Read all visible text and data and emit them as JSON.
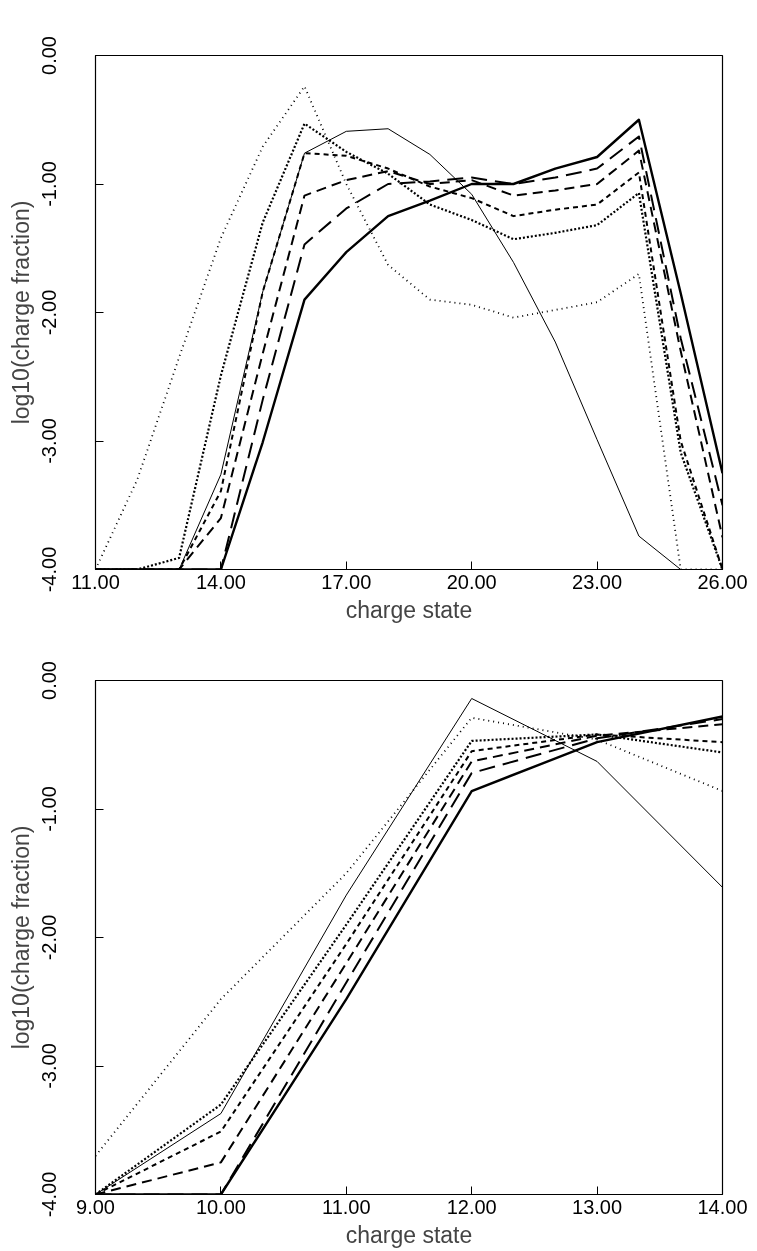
{
  "chart_data": [
    {
      "type": "line",
      "xlabel": "charge state",
      "ylabel": "log10(charge fraction)",
      "x": [
        11,
        12,
        13,
        14,
        15,
        16,
        17,
        18,
        19,
        20,
        21,
        22,
        23,
        24,
        25,
        26
      ],
      "xlim": [
        11,
        26
      ],
      "xticks": [
        {
          "value": 11,
          "label": "11.00"
        },
        {
          "value": 14,
          "label": "14.00"
        },
        {
          "value": 17,
          "label": "17.00"
        },
        {
          "value": 20,
          "label": "20.00"
        },
        {
          "value": 23,
          "label": "23.00"
        },
        {
          "value": 26,
          "label": "26.00"
        }
      ],
      "ylim": [
        -4,
        0
      ],
      "yticks": [
        {
          "value": -4,
          "label": "-4.00"
        },
        {
          "value": -3,
          "label": "-3.00"
        },
        {
          "value": -2,
          "label": "-2.00"
        },
        {
          "value": -1,
          "label": "-1.00"
        },
        {
          "value": 0,
          "label": "0.00"
        }
      ],
      "grid": false,
      "series": [
        {
          "color": "#000000",
          "line_style": "dotted",
          "values": [
            -4,
            -3.3,
            -2.35,
            -1.42,
            -0.71,
            -0.24,
            -1.0,
            -1.63,
            -1.9,
            -1.94,
            -2.04,
            -1.98,
            -1.92,
            -1.7,
            -4,
            -4
          ]
        },
        {
          "color": "#000000",
          "line_style": "dotted",
          "values": [
            -4,
            -4,
            -3.91,
            -2.49,
            -1.3,
            -0.53,
            -0.75,
            -0.92,
            -1.16,
            -1.28,
            -1.43,
            -1.38,
            -1.32,
            -1.07,
            -3.09,
            -4
          ]
        },
        {
          "color": "#000000",
          "line_style": "dashed",
          "values": [
            -4,
            -4,
            -4,
            -3.39,
            -1.84,
            -0.76,
            -0.78,
            -0.88,
            -1.02,
            -1.11,
            -1.25,
            -1.2,
            -1.16,
            -0.91,
            -3.0,
            -4
          ]
        },
        {
          "color": "#000000",
          "line_style": "dashed",
          "values": [
            -4,
            -4,
            -4,
            -3.6,
            -2.32,
            -1.09,
            -0.97,
            -0.9,
            -1.0,
            -0.97,
            -1.09,
            -1.05,
            -1.0,
            -0.74,
            -2.3,
            -3.75
          ]
        },
        {
          "color": "#000000",
          "line_style": "dashed",
          "values": [
            -4,
            -4,
            -4,
            -4,
            -2.68,
            -1.47,
            -1.19,
            -1.0,
            -0.98,
            -0.95,
            -1.0,
            -0.95,
            -0.88,
            -0.63,
            -2.2,
            -3.5
          ]
        },
        {
          "color": "#000000",
          "line_style": "solid",
          "values": [
            -4,
            -4,
            -4,
            -3.26,
            -1.84,
            -0.76,
            -0.59,
            -0.57,
            -0.77,
            -1.08,
            -1.61,
            -2.23,
            -2.99,
            -3.74,
            -4,
            -4
          ]
        },
        {
          "color": "#000000",
          "line_style": "solid",
          "values": [
            -4,
            -4,
            -4,
            -4,
            -3.01,
            -1.9,
            -1.53,
            -1.25,
            -1.13,
            -1.0,
            -1.0,
            -0.88,
            -0.79,
            -0.5,
            -1.85,
            -3.25
          ]
        }
      ]
    },
    {
      "type": "line",
      "xlabel": "charge state",
      "ylabel": "log10(charge fraction)",
      "x": [
        9,
        10,
        11,
        12,
        13,
        14
      ],
      "xlim": [
        9,
        14
      ],
      "xticks": [
        {
          "value": 9,
          "label": "9.00"
        },
        {
          "value": 10,
          "label": "10.00"
        },
        {
          "value": 11,
          "label": "11.00"
        },
        {
          "value": 12,
          "label": "12.00"
        },
        {
          "value": 13,
          "label": "13.00"
        },
        {
          "value": 14,
          "label": "14.00"
        }
      ],
      "ylim": [
        -4,
        0
      ],
      "yticks": [
        {
          "value": -4,
          "label": "-4.00"
        },
        {
          "value": -3,
          "label": "-3.00"
        },
        {
          "value": -2,
          "label": "-2.00"
        },
        {
          "value": -1,
          "label": "-1.00"
        },
        {
          "value": 0,
          "label": "0.00"
        }
      ],
      "grid": false,
      "series": [
        {
          "color": "#000000",
          "line_style": "dotted",
          "values": [
            -3.7,
            -2.48,
            -1.5,
            -0.29,
            -0.46,
            -0.86
          ]
        },
        {
          "color": "#000000",
          "line_style": "dotted",
          "values": [
            -4,
            -3.3,
            -1.9,
            -0.47,
            -0.42,
            -0.56
          ]
        },
        {
          "color": "#000000",
          "line_style": "dashed",
          "values": [
            -4,
            -3.51,
            -2.05,
            -0.55,
            -0.42,
            -0.48
          ]
        },
        {
          "color": "#000000",
          "line_style": "dashed",
          "values": [
            -4,
            -3.75,
            -2.2,
            -0.63,
            -0.43,
            -0.34
          ]
        },
        {
          "color": "#000000",
          "line_style": "dashed",
          "values": [
            -4,
            -4,
            -2.35,
            -0.72,
            -0.45,
            -0.3
          ]
        },
        {
          "color": "#000000",
          "line_style": "solid",
          "values": [
            -4,
            -3.37,
            -1.67,
            -0.14,
            -0.63,
            -1.61
          ]
        },
        {
          "color": "#000000",
          "line_style": "solid",
          "values": [
            -4,
            -4,
            -2.48,
            -0.86,
            -0.48,
            -0.28
          ]
        }
      ]
    }
  ]
}
